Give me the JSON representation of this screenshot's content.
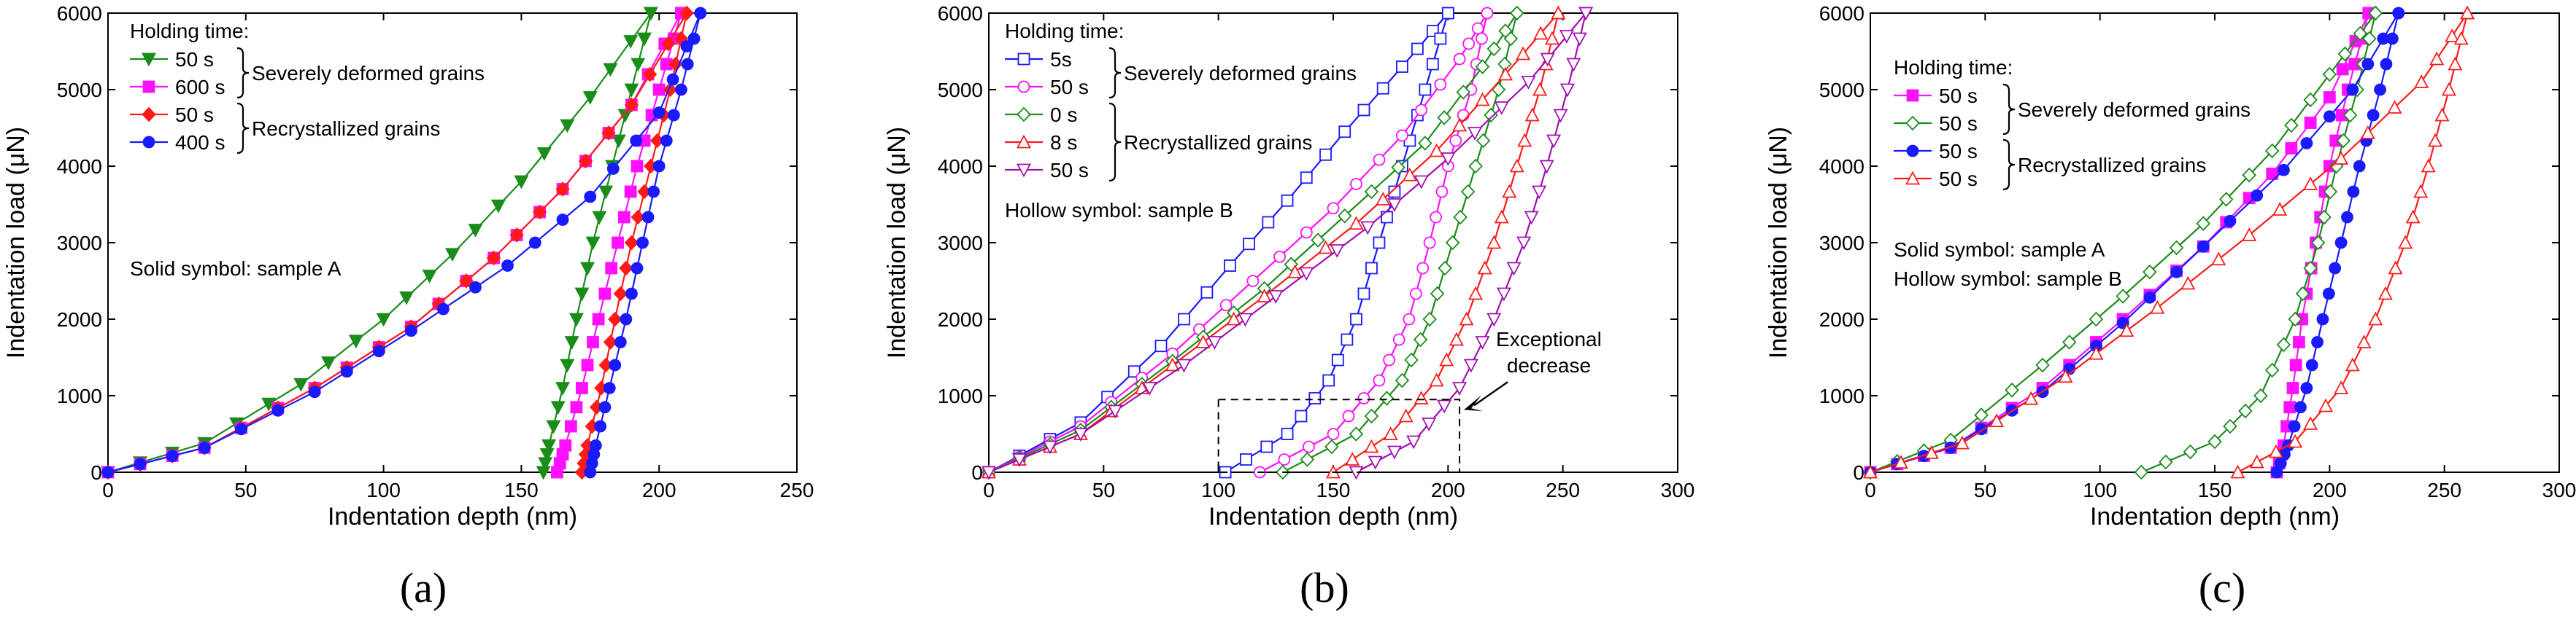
{
  "figure": {
    "description_panels": [
      "(a)",
      "(b)",
      "(c)"
    ]
  },
  "colors": {
    "green": "#1a8c1a",
    "magenta": "#ff10ff",
    "red": "#ff1a1a",
    "blue": "#1a1aff",
    "purple": "#a010b0"
  },
  "chart_data": [
    {
      "type": "line",
      "panel_label": "(a)",
      "xlabel": "Indentation depth (nm)",
      "ylabel": "Indentation load (μN)",
      "xlim": [
        0,
        250
      ],
      "ylim": [
        0,
        6000
      ],
      "xticks": [
        0,
        50,
        100,
        150,
        200,
        250
      ],
      "yticks": [
        0,
        1000,
        2000,
        3000,
        4000,
        5000,
        6000
      ],
      "legend_title": "Holding time:",
      "groups": [
        {
          "label": "Severely deformed grains",
          "members": [
            0,
            1
          ]
        },
        {
          "label": "Recrystallized grains",
          "members": [
            2,
            3
          ]
        }
      ],
      "notes": [
        "Solid symbol: sample A"
      ],
      "series": [
        {
          "name": "50 s",
          "color": "#1a8c1a",
          "marker": "tri-down",
          "filled": true,
          "loading": {
            "depth": [
              0,
              35,
              70,
              100,
              125,
              150,
              175,
              197
            ],
            "load": [
              0,
              380,
              1150,
              2000,
              2850,
              3800,
              4900,
              6000
            ]
          },
          "unloading": {
            "depth": [
              197,
              190,
              183,
              176,
              170,
              165,
              160,
              158
            ],
            "load": [
              6000,
              5000,
              4000,
              3000,
              2000,
              1100,
              350,
              0
            ]
          }
        },
        {
          "name": "600 s",
          "color": "#ff10ff",
          "marker": "square",
          "filled": true,
          "loading": {
            "depth": [
              0,
              35,
              75,
              110,
              140,
              165,
              190,
              208
            ],
            "load": [
              0,
              320,
              1100,
              1900,
              2800,
              3700,
              4800,
              6000
            ]
          },
          "unloading": {
            "depth": [
              208,
              200,
              192,
              185,
              178,
              172,
              166,
              163
            ],
            "load": [
              6000,
              5000,
              4000,
              3000,
              2000,
              1100,
              350,
              0
            ]
          }
        },
        {
          "name": "50 s",
          "color": "#ff1a1a",
          "marker": "diamond",
          "filled": true,
          "loading": {
            "depth": [
              0,
              35,
              75,
              110,
              140,
              165,
              190,
              210
            ],
            "load": [
              0,
              320,
              1100,
              1900,
              2800,
              3700,
              4800,
              6000
            ]
          },
          "unloading": {
            "depth": [
              210,
              204,
              197,
              190,
              184,
              179,
              174,
              172
            ],
            "load": [
              6000,
              5000,
              4000,
              3000,
              2000,
              1100,
              350,
              0
            ]
          }
        },
        {
          "name": "400 s",
          "color": "#1a1aff",
          "marker": "circle",
          "filled": true,
          "loading": {
            "depth": [
              0,
              35,
              75,
              110,
              145,
              175,
              200,
              215
            ],
            "load": [
              0,
              320,
              1050,
              1850,
              2700,
              3600,
              4700,
              6000
            ]
          },
          "unloading": {
            "depth": [
              215,
              208,
              200,
              194,
              188,
              182,
              177,
              175
            ],
            "load": [
              6000,
              5000,
              4000,
              3000,
              2000,
              1100,
              350,
              0
            ]
          }
        }
      ]
    },
    {
      "type": "line",
      "panel_label": "(b)",
      "xlabel": "Indentation depth (nm)",
      "ylabel": "Indentation load (μN)",
      "xlim": [
        0,
        300
      ],
      "ylim": [
        0,
        6000
      ],
      "xticks": [
        0,
        50,
        100,
        150,
        200,
        250,
        300
      ],
      "yticks": [
        0,
        1000,
        2000,
        3000,
        4000,
        5000,
        6000
      ],
      "legend_title": "Holding time:",
      "groups": [
        {
          "label": "Severely deformed grains",
          "members": [
            0,
            1
          ]
        },
        {
          "label": "Recrystallized grains",
          "members": [
            2,
            3,
            4
          ]
        }
      ],
      "notes": [
        "Hollow symbol: sample B"
      ],
      "annotation": {
        "text": [
          "Exceptional",
          "decrease"
        ],
        "box_depth": [
          100,
          205
        ],
        "box_load": [
          0,
          950
        ]
      },
      "series": [
        {
          "name": "5s",
          "color": "#1a1aff",
          "marker": "square",
          "filled": false,
          "loading": {
            "depth": [
              0,
              40,
              75,
              105,
              130,
              155,
              180,
              200
            ],
            "load": [
              0,
              650,
              1650,
              2700,
              3550,
              4450,
              5300,
              6000
            ]
          },
          "unloading": {
            "depth": [
              200,
              190,
              180,
              170,
              160,
              148,
              130,
              103
            ],
            "load": [
              6000,
              5000,
              4000,
              3000,
              2000,
              1200,
              500,
              0
            ]
          }
        },
        {
          "name": "50 s",
          "color": "#ff10ff",
          "marker": "circle",
          "filled": false,
          "loading": {
            "depth": [
              0,
              40,
              80,
              115,
              150,
              180,
              205,
              217
            ],
            "load": [
              0,
              600,
              1550,
              2500,
              3450,
              4400,
              5400,
              6000
            ]
          },
          "unloading": {
            "depth": [
              217,
              210,
              200,
              192,
              183,
              170,
              150,
              118
            ],
            "load": [
              6000,
              5000,
              4000,
              3000,
              2000,
              1200,
              500,
              0
            ]
          }
        },
        {
          "name": "0 s",
          "color": "#1a8c1a",
          "marker": "diamond",
          "filled": false,
          "loading": {
            "depth": [
              0,
              40,
              80,
              120,
              155,
              190,
              215,
              230
            ],
            "load": [
              0,
              550,
              1450,
              2400,
              3350,
              4300,
              5300,
              6000
            ]
          },
          "unloading": {
            "depth": [
              230,
              222,
              212,
              202,
              192,
              180,
              160,
              128
            ],
            "load": [
              6000,
              5000,
              4000,
              3000,
              2000,
              1200,
              500,
              0
            ]
          }
        },
        {
          "name": "8 s",
          "color": "#ff1a1a",
          "marker": "tri-up",
          "filled": false,
          "loading": {
            "depth": [
              0,
              40,
              80,
              120,
              160,
              195,
              225,
              248
            ],
            "load": [
              0,
              500,
              1400,
              2300,
              3250,
              4200,
              5200,
              6000
            ]
          },
          "unloading": {
            "depth": [
              248,
              240,
              230,
              220,
              208,
              195,
              175,
              150
            ],
            "load": [
              6000,
              5000,
              4000,
              3000,
              2000,
              1200,
              500,
              0
            ]
          }
        },
        {
          "name": "50 s",
          "color": "#a010b0",
          "marker": "tri-down",
          "filled": false,
          "loading": {
            "depth": [
              0,
              40,
              85,
              125,
              165,
              200,
              235,
              260
            ],
            "load": [
              0,
              500,
              1400,
              2300,
              3200,
              4100,
              5100,
              6000
            ]
          },
          "unloading": {
            "depth": [
              260,
              252,
              243,
              233,
              220,
              205,
              185,
              160
            ],
            "load": [
              6000,
              5000,
              4000,
              3000,
              2000,
              1100,
              400,
              0
            ]
          }
        }
      ]
    },
    {
      "type": "line",
      "panel_label": "(c)",
      "xlabel": "Indentation depth (nm)",
      "ylabel": "Indentation load (μN)",
      "xlim": [
        0,
        300
      ],
      "ylim": [
        0,
        6000
      ],
      "xticks": [
        0,
        50,
        100,
        150,
        200,
        250,
        300
      ],
      "yticks": [
        0,
        1000,
        2000,
        3000,
        4000,
        5000,
        6000
      ],
      "legend_title": "Holding time:",
      "groups": [
        {
          "label": "Severely deformed grains",
          "members": [
            0,
            1
          ]
        },
        {
          "label": "Recrystallized grains",
          "members": [
            2,
            3
          ]
        }
      ],
      "notes": [
        "Solid symbol: sample A",
        "Hollow symbol: sample B"
      ],
      "series": [
        {
          "name": "50 s",
          "color": "#ff10ff",
          "marker": "square",
          "filled": true,
          "loading": {
            "depth": [
              0,
              35,
              75,
              110,
              145,
              175,
              200,
              217
            ],
            "load": [
              0,
              320,
              1100,
              2000,
              2950,
              3900,
              4900,
              6000
            ]
          },
          "unloading": {
            "depth": [
              217,
              208,
              200,
              194,
              188,
              184,
              180,
              177
            ],
            "load": [
              6000,
              5000,
              4000,
              3000,
              2000,
              1100,
              350,
              0
            ]
          }
        },
        {
          "name": "50 s",
          "color": "#1a8c1a",
          "marker": "diamond",
          "filled": false,
          "loading": {
            "depth": [
              0,
              35,
              75,
              110,
              145,
              175,
              200,
              220
            ],
            "load": [
              0,
              420,
              1400,
              2300,
              3250,
              4200,
              5200,
              6000
            ]
          },
          "unloading": {
            "depth": [
              220,
              212,
              203,
              195,
              185,
              170,
              150,
              118
            ],
            "load": [
              6000,
              5000,
              4000,
              3000,
              2000,
              1000,
              400,
              0
            ]
          }
        },
        {
          "name": "50 s",
          "color": "#1a1aff",
          "marker": "circle",
          "filled": true,
          "loading": {
            "depth": [
              0,
              35,
              75,
              110,
              145,
              180,
              210,
              230
            ],
            "load": [
              0,
              320,
              1050,
              1950,
              2950,
              3950,
              5000,
              6000
            ]
          },
          "unloading": {
            "depth": [
              230,
              222,
              213,
              205,
              197,
              190,
              182,
              177
            ],
            "load": [
              6000,
              5000,
              4000,
              3000,
              2000,
              1100,
              350,
              0
            ]
          }
        },
        {
          "name": "50 s",
          "color": "#ff1a1a",
          "marker": "tri-up",
          "filled": false,
          "loading": {
            "depth": [
              0,
              40,
              85,
              125,
              165,
              205,
              240,
              260
            ],
            "load": [
              0,
              380,
              1250,
              2150,
              3100,
              4100,
              5100,
              6000
            ]
          },
          "unloading": {
            "depth": [
              260,
              252,
              243,
              233,
              220,
              205,
              185,
              160
            ],
            "load": [
              6000,
              5000,
              4000,
              3000,
              2000,
              1100,
              400,
              0
            ]
          }
        }
      ]
    }
  ]
}
